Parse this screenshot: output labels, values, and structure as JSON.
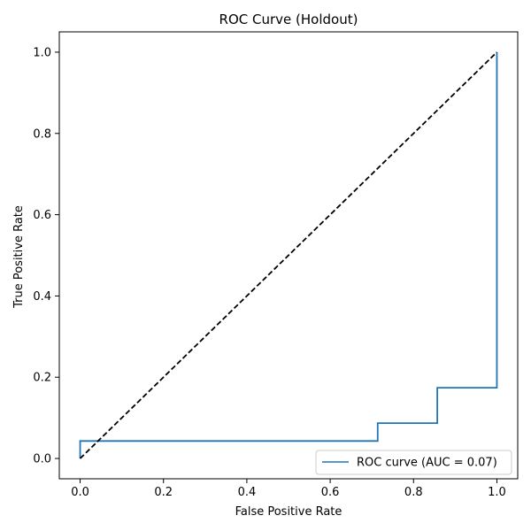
{
  "chart_data": {
    "type": "line",
    "title": "ROC Curve (Holdout)",
    "xlabel": "False Positive Rate",
    "ylabel": "True Positive Rate",
    "xlim": [
      -0.05,
      1.05
    ],
    "ylim": [
      -0.05,
      1.05
    ],
    "x_ticks": [
      "0.0",
      "0.2",
      "0.4",
      "0.6",
      "0.8",
      "1.0"
    ],
    "y_ticks": [
      "0.0",
      "0.2",
      "0.4",
      "0.6",
      "0.8",
      "1.0"
    ],
    "grid": false,
    "legend_position": "lower-right",
    "series": [
      {
        "name": "ROC curve (AUC = 0.07)",
        "color": "#1f77b4",
        "style": "solid",
        "x": [
          0.0,
          0.0,
          0.714,
          0.714,
          0.857,
          0.857,
          1.0,
          1.0
        ],
        "y": [
          0.0,
          0.043,
          0.043,
          0.087,
          0.087,
          0.174,
          0.174,
          1.0
        ]
      },
      {
        "color": "#000000",
        "style": "dashed",
        "x": [
          0.0,
          1.0
        ],
        "y": [
          0.0,
          1.0
        ]
      }
    ]
  }
}
